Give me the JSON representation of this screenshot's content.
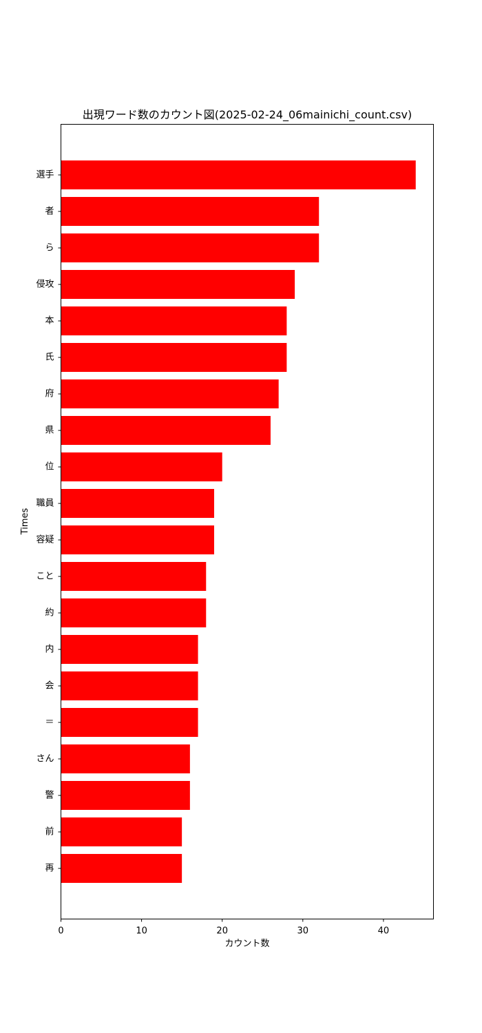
{
  "chart_data": {
    "type": "bar",
    "orientation": "horizontal",
    "title": "出現ワード数のカウント図(2025-02-24_06mainichi_count.csv)",
    "xlabel": "カウント数",
    "ylabel": "Times",
    "categories": [
      "選手",
      "者",
      "ら",
      "侵攻",
      "本",
      "氏",
      "府",
      "県",
      "位",
      "職員",
      "容疑",
      "こと",
      "約",
      "内",
      "会",
      "＝",
      "さん",
      "警",
      "前",
      "再"
    ],
    "values": [
      44,
      32,
      32,
      29,
      28,
      28,
      27,
      26,
      20,
      19,
      19,
      18,
      18,
      17,
      17,
      17,
      16,
      16,
      15,
      15
    ],
    "xlim": [
      0,
      46.2
    ],
    "xticks": [
      0,
      10,
      20,
      30,
      40
    ],
    "bar_color": "#ff0000",
    "grid": false,
    "legend": "none"
  }
}
